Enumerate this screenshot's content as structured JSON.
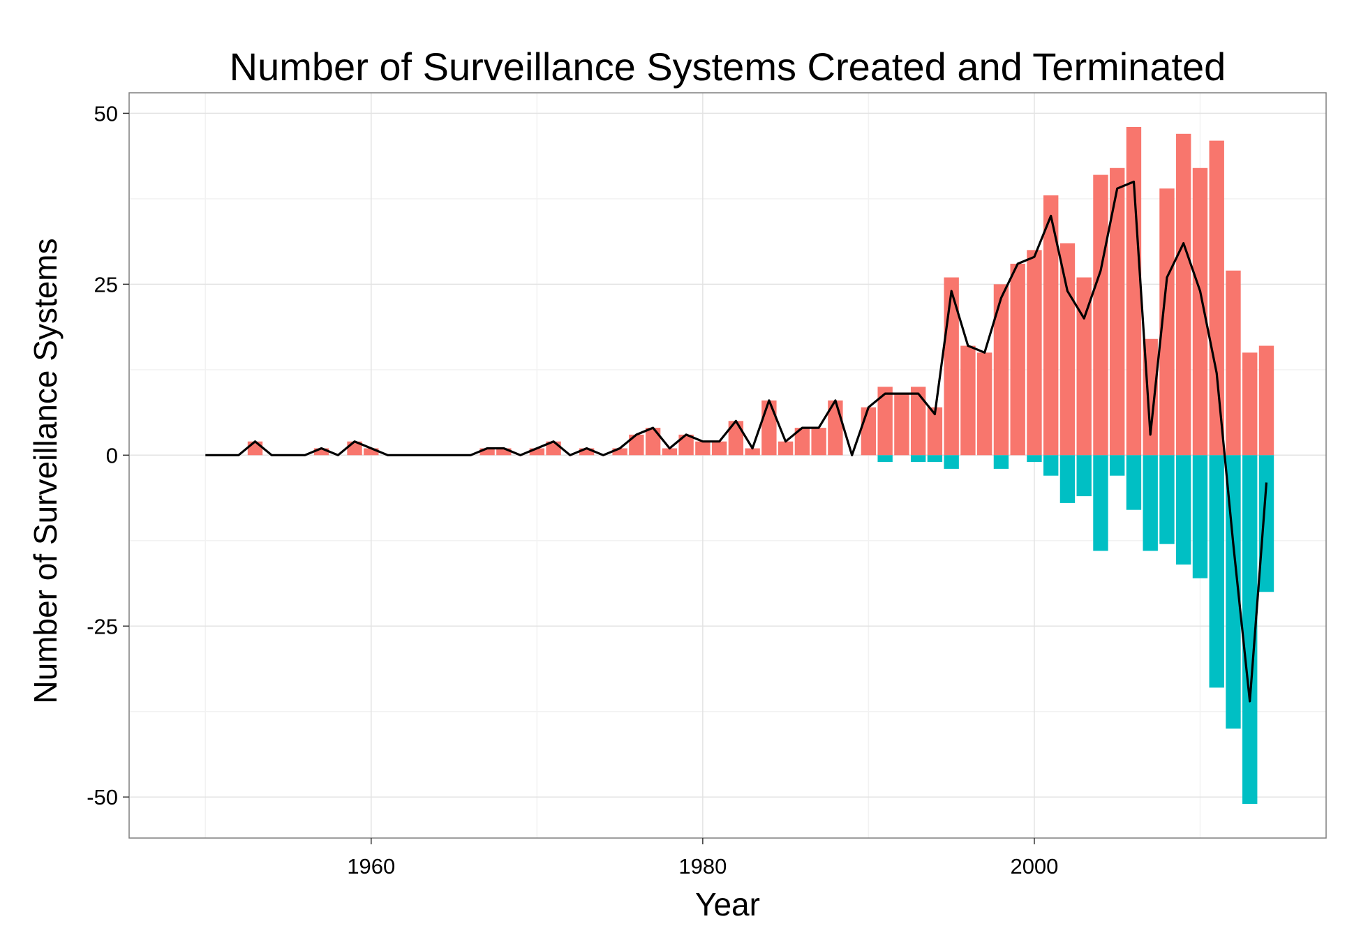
{
  "chart_data": {
    "type": "bar",
    "title": "Number of Surveillance Systems Created and Terminated",
    "xlabel": "Year",
    "ylabel": "Number of Surveillance Systems",
    "xlim": [
      1945.4,
      2017.6
    ],
    "ylim": [
      -56,
      53
    ],
    "x_ticks": [
      1960,
      1980,
      2000
    ],
    "y_ticks": [
      50,
      25,
      0,
      -25,
      -50
    ],
    "y_tick_labels": [
      "50",
      "25",
      "0",
      "-25",
      "-50"
    ],
    "grid": true,
    "legend": "none",
    "colors": {
      "created": "#F8766D",
      "terminated": "#00BFC4",
      "net": "#000000"
    },
    "years": [
      1950,
      1951,
      1952,
      1953,
      1954,
      1955,
      1956,
      1957,
      1958,
      1959,
      1960,
      1961,
      1962,
      1963,
      1964,
      1965,
      1966,
      1967,
      1968,
      1969,
      1970,
      1971,
      1972,
      1973,
      1974,
      1975,
      1976,
      1977,
      1978,
      1979,
      1980,
      1981,
      1982,
      1983,
      1984,
      1985,
      1986,
      1987,
      1988,
      1989,
      1990,
      1991,
      1992,
      1993,
      1994,
      1995,
      1996,
      1997,
      1998,
      1999,
      2000,
      2001,
      2002,
      2003,
      2004,
      2005,
      2006,
      2007,
      2008,
      2009,
      2010,
      2011,
      2012,
      2013,
      2014
    ],
    "series": [
      {
        "values": [
          0,
          0,
          0,
          2,
          0,
          0,
          0,
          1,
          0,
          2,
          1,
          0,
          0,
          0,
          0,
          0,
          0,
          1,
          1,
          0,
          1,
          2,
          0,
          1,
          0,
          1,
          3,
          4,
          1,
          3,
          2,
          2,
          5,
          1,
          8,
          2,
          4,
          4,
          8,
          0,
          7,
          10,
          9,
          10,
          7,
          26,
          16,
          15,
          25,
          28,
          30,
          38,
          31,
          26,
          41,
          42,
          48,
          17,
          39,
          47,
          42,
          46,
          27,
          15,
          16
        ]
      },
      {
        "values": [
          0,
          0,
          0,
          0,
          0,
          0,
          0,
          0,
          0,
          0,
          0,
          0,
          0,
          0,
          0,
          0,
          0,
          0,
          0,
          0,
          0,
          0,
          0,
          0,
          0,
          0,
          0,
          0,
          0,
          0,
          0,
          0,
          0,
          0,
          0,
          0,
          0,
          0,
          0,
          0,
          0,
          -1,
          0,
          -1,
          -1,
          -2,
          0,
          0,
          -2,
          0,
          -1,
          -3,
          -7,
          -6,
          -14,
          -3,
          -8,
          -14,
          -13,
          -16,
          -18,
          -34,
          -40,
          -51,
          -20
        ]
      },
      {
        "values": [
          0,
          0,
          0,
          2,
          0,
          0,
          0,
          1,
          0,
          2,
          1,
          0,
          0,
          0,
          0,
          0,
          0,
          1,
          1,
          0,
          1,
          2,
          0,
          1,
          0,
          1,
          3,
          4,
          1,
          3,
          2,
          2,
          5,
          1,
          8,
          2,
          4,
          4,
          8,
          0,
          7,
          9,
          9,
          9,
          6,
          24,
          16,
          15,
          23,
          28,
          29,
          35,
          24,
          20,
          27,
          39,
          40,
          3,
          26,
          31,
          24,
          12,
          -13,
          -36,
          -4
        ]
      }
    ]
  }
}
